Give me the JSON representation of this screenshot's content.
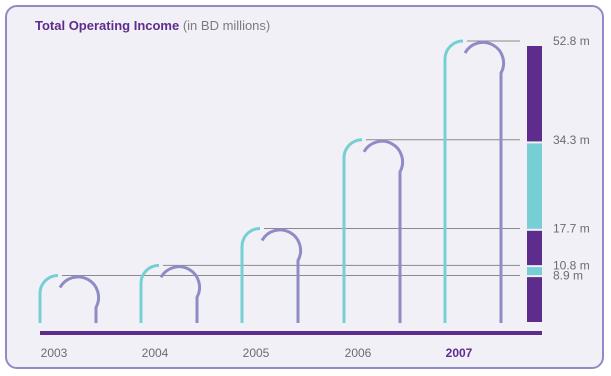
{
  "chart_data": {
    "type": "bar",
    "title": "Total Operating Income",
    "subtitle": "(in BD millions)",
    "categories": [
      "2003",
      "2004",
      "2005",
      "2006",
      "2007"
    ],
    "highlight_category": "2007",
    "series": [
      {
        "values": [
          8.9,
          10.8,
          17.7,
          34.3,
          52.8
        ]
      }
    ],
    "value_labels": [
      "8.9 m",
      "10.8 m",
      "17.7 m",
      "34.3 m",
      "52.8 m"
    ],
    "stack_segments": [
      {
        "value": 18.5,
        "color": "#5e2c8c"
      },
      {
        "value": 16.6,
        "color": "#76cfd5"
      },
      {
        "value": 6.9,
        "color": "#5e2c8c"
      },
      {
        "value": 1.9,
        "color": "#76cfd5"
      },
      {
        "value": 8.9,
        "color": "#5e2c8c"
      }
    ],
    "colors": {
      "accent_purple": "#5e2c8c",
      "teal": "#76cfd5",
      "lavender": "#8f8bc6",
      "highlight": "#5e2c8c"
    }
  }
}
